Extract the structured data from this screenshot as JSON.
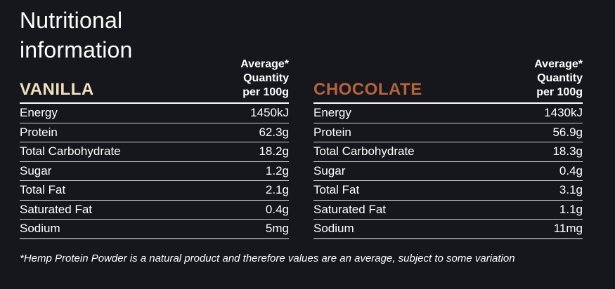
{
  "title": "Nutritional\ninformation",
  "quantity_header": "Average*\nQuantity\nper 100g",
  "panels": [
    {
      "flavor": "VANILLA",
      "flavor_color": "#f3e1bd",
      "rows": [
        {
          "label": "Energy",
          "value": "1450kJ"
        },
        {
          "label": "Protein",
          "value": "62.3g"
        },
        {
          "label": "Total Carbohydrate",
          "value": "18.2g"
        },
        {
          "label": "Sugar",
          "value": "1.2g"
        },
        {
          "label": "Total Fat",
          "value": "2.1g"
        },
        {
          "label": "Saturated Fat",
          "value": "0.4g"
        },
        {
          "label": "Sodium",
          "value": "5mg"
        }
      ]
    },
    {
      "flavor": "CHOCOLATE",
      "flavor_color": "#b7633a",
      "rows": [
        {
          "label": "Energy",
          "value": "1430kJ"
        },
        {
          "label": "Protein",
          "value": "56.9g"
        },
        {
          "label": "Total Carbohydrate",
          "value": "18.3g"
        },
        {
          "label": "Sugar",
          "value": "0.4g"
        },
        {
          "label": "Total Fat",
          "value": "3.1g"
        },
        {
          "label": "Saturated Fat",
          "value": "1.1g"
        },
        {
          "label": "Sodium",
          "value": "11mg"
        }
      ]
    }
  ],
  "footnote": "*Hemp Protein Powder is a natural product and therefore values are an average, subject to some variation"
}
